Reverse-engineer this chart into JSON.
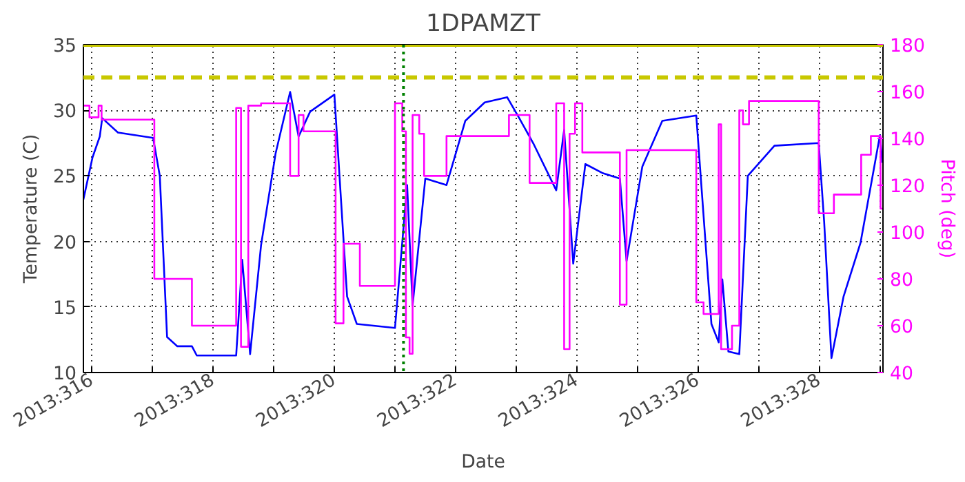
{
  "chart_data": {
    "type": "line",
    "title": "1DPAMZT",
    "xlabel": "Date",
    "ylabel": "Temperature (C)",
    "y2label": "Pitch (deg)",
    "xlim": [
      "2013-11-11T20:38",
      "2013-11-25T01:12"
    ],
    "xticks": [
      {
        "value": "2013-11-12",
        "label": "2013:316"
      },
      {
        "value": "2013-11-13",
        "label": null
      },
      {
        "value": "2013-11-14",
        "label": "2013:318"
      },
      {
        "value": "2013-11-15",
        "label": null
      },
      {
        "value": "2013-11-16",
        "label": "2013:320"
      },
      {
        "value": "2013-11-17",
        "label": null
      },
      {
        "value": "2013-11-18",
        "label": "2013:322"
      },
      {
        "value": "2013-11-19",
        "label": null
      },
      {
        "value": "2013-11-20",
        "label": "2013:324"
      },
      {
        "value": "2013-11-21",
        "label": null
      },
      {
        "value": "2013-11-22",
        "label": "2013:326"
      },
      {
        "value": "2013-11-23",
        "label": null
      },
      {
        "value": "2013-11-24",
        "label": "2013:328"
      },
      {
        "value": "2013-11-25",
        "label": null
      }
    ],
    "ylim": [
      10,
      35
    ],
    "yticks": [
      10,
      15,
      20,
      25,
      30,
      35
    ],
    "y2lim": [
      40,
      180
    ],
    "y2ticks": [
      40,
      60,
      80,
      100,
      120,
      140,
      160,
      180
    ],
    "grid": true,
    "line_style": "solid",
    "marker": "none",
    "ref_lines": [
      {
        "axis": "y",
        "value": 32.5,
        "color": "#c8c800",
        "line_style": "dashed"
      },
      {
        "axis": "y",
        "value": 35,
        "color": "#c8c800",
        "line_style": "solid"
      },
      {
        "axis": "x",
        "value": "2013-11-17T03:22",
        "color": "#008000",
        "line_style": "dotted"
      }
    ],
    "series": [
      {
        "color": "#0000ff",
        "x": [
          "2013-11-11T20:38",
          "2013-11-12T00:14",
          "2013-11-12T03:07",
          "2013-11-12T04:05",
          "2013-11-12T10:19",
          "2013-11-13T00:14",
          "2013-11-13T02:53",
          "2013-11-13T05:46",
          "2013-11-13T09:50",
          "2013-11-13T15:36",
          "2013-11-13T17:31",
          "2013-11-14T09:07",
          "2013-11-14T11:31",
          "2013-11-14T14:38",
          "2013-11-14T18:58",
          "2013-11-15T00:43",
          "2013-11-15T06:29",
          "2013-11-15T09:50",
          "2013-11-15T14:24",
          "2013-11-16T00:00",
          "2013-11-16T05:02",
          "2013-11-16T08:53",
          "2013-11-17T00:00",
          "2013-11-17T04:48",
          "2013-11-17T06:58",
          "2013-11-17T12:00",
          "2013-11-17T20:24",
          "2013-11-18T03:50",
          "2013-11-18T11:31",
          "2013-11-18T20:24",
          "2013-11-19T01:12",
          "2013-11-19T06:58",
          "2013-11-19T15:50",
          "2013-11-19T18:58",
          "2013-11-19T22:34",
          "2013-11-20T03:22",
          "2013-11-20T10:19",
          "2013-11-20T17:02",
          "2013-11-20T19:41",
          "2013-11-21T01:55",
          "2013-11-21T09:50",
          "2013-11-21T23:17",
          "2013-11-22T05:17",
          "2013-11-22T08:10",
          "2013-11-22T09:36",
          "2013-11-22T12:00",
          "2013-11-22T16:19",
          "2013-11-22T19:41",
          "2013-11-23T06:14",
          "2013-11-23T23:46",
          "2013-11-24T01:55",
          "2013-11-24T04:48",
          "2013-11-24T09:36",
          "2013-11-24T16:19",
          "2013-11-25T00:00",
          "2013-11-25T00:58"
        ],
        "values": [
          23.2,
          26.4,
          28.0,
          29.4,
          28.3,
          27.9,
          25.0,
          12.7,
          12.0,
          12.0,
          11.3,
          11.3,
          18.6,
          11.4,
          19.7,
          26.7,
          31.4,
          28.0,
          29.9,
          31.2,
          15.8,
          13.7,
          13.4,
          24.3,
          15.1,
          24.8,
          24.3,
          29.2,
          30.6,
          31.0,
          29.4,
          27.4,
          23.9,
          28.5,
          18.3,
          25.9,
          25.2,
          24.8,
          18.5,
          25.7,
          29.2,
          29.6,
          13.7,
          12.3,
          17.1,
          11.6,
          11.4,
          25.0,
          27.3,
          27.5,
          21.5,
          11.1,
          15.8,
          19.9,
          28.1,
          26.0
        ]
      },
      {
        "type": "step",
        "axis": "y2",
        "color": "#ff00ff",
        "x": [
          "2013-11-11T20:38",
          "2013-11-11T23:02",
          "2013-11-12T02:38",
          "2013-11-12T03:50",
          "2013-11-13T00:43",
          "2013-11-13T15:36",
          "2013-11-14T09:07",
          "2013-11-14T11:02",
          "2013-11-14T13:55",
          "2013-11-14T18:58",
          "2013-11-15T06:29",
          "2013-11-15T09:50",
          "2013-11-15T11:46",
          "2013-11-16T00:29",
          "2013-11-16T03:36",
          "2013-11-16T10:05",
          "2013-11-17T00:00",
          "2013-11-17T02:53",
          "2013-11-17T04:19",
          "2013-11-17T05:46",
          "2013-11-17T06:58",
          "2013-11-17T09:36",
          "2013-11-17T11:31",
          "2013-11-17T20:24",
          "2013-11-18T21:07",
          "2013-11-19T05:17",
          "2013-11-19T15:50",
          "2013-11-19T18:58",
          "2013-11-19T21:07",
          "2013-11-19T23:17",
          "2013-11-20T02:10",
          "2013-11-20T17:02",
          "2013-11-20T19:41",
          "2013-11-21T23:17",
          "2013-11-22T02:10",
          "2013-11-22T08:10",
          "2013-11-22T09:07",
          "2013-11-22T13:26",
          "2013-11-22T16:19",
          "2013-11-22T17:46",
          "2013-11-22T20:10",
          "2013-11-23T23:46",
          "2013-11-24T05:46",
          "2013-11-24T16:34",
          "2013-11-24T20:24",
          "2013-11-25T00:14",
          "2013-11-25T01:12"
        ],
        "values": [
          154,
          149,
          154,
          148,
          80,
          60,
          153,
          51,
          154,
          155,
          124,
          150,
          143,
          61,
          95,
          77,
          155,
          143,
          55,
          48,
          150,
          142,
          124,
          141,
          150,
          121,
          155,
          50,
          142,
          155,
          134,
          69,
          135,
          70,
          65,
          146,
          50,
          60,
          152,
          146,
          156,
          108,
          116,
          133,
          141,
          110,
          110
        ]
      }
    ]
  }
}
